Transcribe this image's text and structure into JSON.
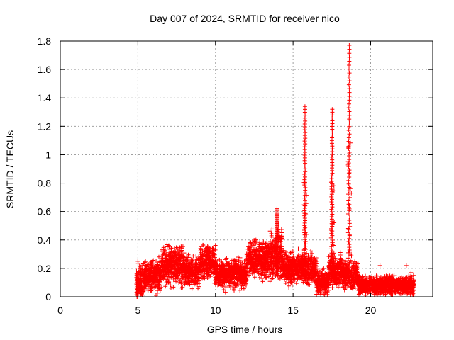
{
  "chart_data": {
    "type": "scatter",
    "title": "Day 007 of 2024, SRMTID for receiver nico",
    "xlabel": "GPS time / hours",
    "ylabel": "SRMTID / TECUs",
    "xlim": [
      0,
      24
    ],
    "ylim": [
      0,
      1.8
    ],
    "xticks": [
      0,
      5,
      10,
      15,
      20
    ],
    "yticks": [
      0,
      0.2,
      0.4,
      0.6,
      0.8,
      1,
      1.2,
      1.4,
      1.6,
      1.8
    ],
    "grid": true,
    "marker": "+",
    "color": "#ff0000",
    "series": [
      {
        "name": "SRMTID",
        "segments": [
          {
            "x_start": 4.9,
            "x_end": 5.3,
            "level": 0.1,
            "spread": 0.1
          },
          {
            "x_start": 5.3,
            "x_end": 6.5,
            "level": 0.15,
            "spread": 0.1
          },
          {
            "x_start": 6.5,
            "x_end": 8.0,
            "level": 0.22,
            "spread": 0.12
          },
          {
            "x_start": 8.0,
            "x_end": 9.0,
            "level": 0.18,
            "spread": 0.1
          },
          {
            "x_start": 9.0,
            "x_end": 10.0,
            "level": 0.24,
            "spread": 0.11
          },
          {
            "x_start": 10.0,
            "x_end": 12.0,
            "level": 0.16,
            "spread": 0.09
          },
          {
            "x_start": 12.0,
            "x_end": 13.5,
            "level": 0.27,
            "spread": 0.12
          },
          {
            "x_start": 13.5,
            "x_end": 14.3,
            "level": 0.3,
            "spread": 0.15
          },
          {
            "x_start": 14.3,
            "x_end": 15.5,
            "level": 0.2,
            "spread": 0.1
          },
          {
            "x_start": 15.5,
            "x_end": 16.5,
            "level": 0.2,
            "spread": 0.1
          },
          {
            "x_start": 16.5,
            "x_end": 17.3,
            "level": 0.1,
            "spread": 0.08
          },
          {
            "x_start": 17.3,
            "x_end": 18.2,
            "level": 0.18,
            "spread": 0.1
          },
          {
            "x_start": 18.2,
            "x_end": 19.2,
            "level": 0.15,
            "spread": 0.1
          },
          {
            "x_start": 19.2,
            "x_end": 22.8,
            "level": 0.08,
            "spread": 0.06
          }
        ],
        "spikes": [
          {
            "x": 13.95,
            "peak": 0.62,
            "width": 0.15
          },
          {
            "x": 15.75,
            "peak": 1.34,
            "width": 0.12
          },
          {
            "x": 17.5,
            "peak": 1.32,
            "width": 0.14
          },
          {
            "x": 18.6,
            "peak": 1.77,
            "width": 0.15
          }
        ],
        "points": [
          [
            4.95,
            0.0
          ],
          [
            4.95,
            0.0
          ],
          [
            5.0,
            0.25
          ],
          [
            20.6,
            0.22
          ],
          [
            22.3,
            0.22
          ],
          [
            22.6,
            0.17
          ]
        ]
      }
    ]
  }
}
